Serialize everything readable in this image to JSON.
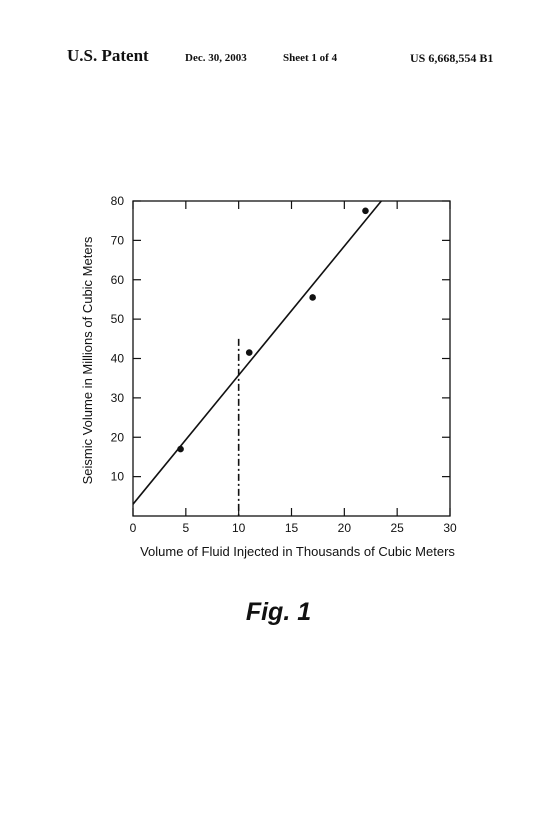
{
  "header": {
    "patent": "U.S. Patent",
    "date": "Dec. 30, 2003",
    "sheet": "Sheet 1 of 4",
    "number": "US 6,668,554 B1"
  },
  "figure": {
    "caption": "Fig. 1"
  },
  "chart_data": {
    "type": "scatter",
    "xlabel": "Volume of Fluid Injected in Thousands of Cubic Meters",
    "ylabel": "Seismic Volume in Millions of Cubic Meters",
    "xlim": [
      0,
      30
    ],
    "ylim": [
      0,
      80
    ],
    "x_ticks": [
      0,
      5,
      10,
      15,
      20,
      25,
      30
    ],
    "y_ticks": [
      10,
      20,
      30,
      40,
      50,
      60,
      70,
      80
    ],
    "grid": false,
    "points": [
      {
        "x": 4.5,
        "y": 17
      },
      {
        "x": 11,
        "y": 41.5
      },
      {
        "x": 17,
        "y": 55.5
      },
      {
        "x": 22,
        "y": 77.5
      }
    ],
    "fit_line": {
      "x1": 0,
      "y1": 3,
      "x2": 23.5,
      "y2": 80
    },
    "vertical_reference": {
      "x": 10,
      "y_top": 45,
      "style": "dash-dot"
    }
  }
}
